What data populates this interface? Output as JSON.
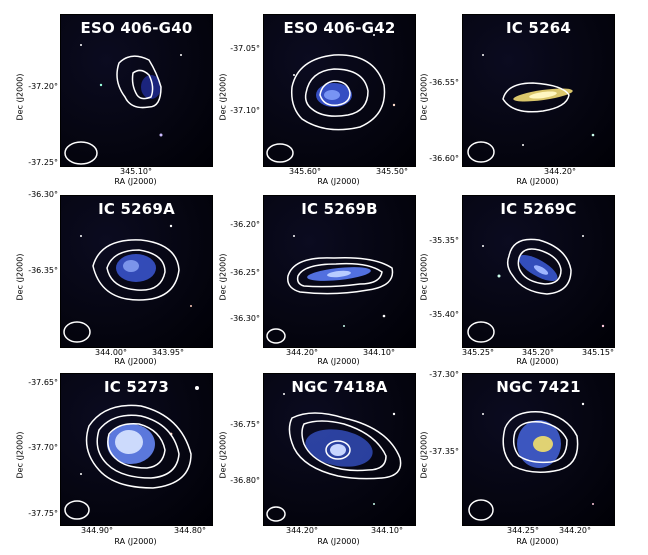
{
  "figure": {
    "panels": [
      {
        "title": "ESO 406-G40",
        "xlabel": "RA (J2000)",
        "ylabel": "Dec (J2000)",
        "xticks": [
          "345.10°"
        ],
        "yticks": [
          "-37.20°",
          "-37.25°"
        ]
      },
      {
        "title": "ESO 406-G42",
        "xlabel": "RA (J2000)",
        "ylabel": "Dec (J2000)",
        "xticks": [
          "345.60°",
          "345.50°"
        ],
        "yticks": [
          "-37.05°",
          "-37.10°"
        ]
      },
      {
        "title": "IC 5264",
        "xlabel": "RA (J2000)",
        "ylabel": "Dec (J2000)",
        "xticks": [
          "344.20°"
        ],
        "yticks": [
          "-36.55°",
          "-36.60°"
        ]
      },
      {
        "title": "IC 5269A",
        "xlabel": "RA (J2000)",
        "ylabel": "Dec (J2000)",
        "xticks": [
          "344.00°",
          "343.95°"
        ],
        "yticks": [
          "-36.30°",
          "-36.35°"
        ]
      },
      {
        "title": "IC 5269B",
        "xlabel": "RA (J2000)",
        "ylabel": "Dec (J2000)",
        "xticks": [
          "344.20°",
          "344.10°"
        ],
        "yticks": [
          "-36.20°",
          "-36.25°",
          "-36.30°"
        ]
      },
      {
        "title": "IC 5269C",
        "xlabel": "RA (J2000)",
        "ylabel": "Dec (J2000)",
        "xticks": [
          "345.25°",
          "345.20°",
          "345.15°"
        ],
        "yticks": [
          "-35.35°",
          "-35.40°"
        ]
      },
      {
        "title": "IC 5273",
        "xlabel": "RA (J2000)",
        "ylabel": "Dec (J2000)",
        "xticks": [
          "344.90°",
          "344.80°"
        ],
        "yticks": [
          "-37.65°",
          "-37.70°",
          "-37.75°"
        ]
      },
      {
        "title": "NGC 7418A",
        "xlabel": "RA (J2000)",
        "ylabel": "Dec (J2000)",
        "xticks": [
          "344.20°",
          "344.10°"
        ],
        "yticks": [
          "-36.75°",
          "-36.80°"
        ]
      },
      {
        "title": "NGC 7421",
        "xlabel": "RA (J2000)",
        "ylabel": "Dec (J2000)",
        "xticks": [
          "344.25°",
          "344.20°"
        ],
        "yticks": [
          "-37.30°",
          "-37.35°"
        ]
      }
    ]
  }
}
